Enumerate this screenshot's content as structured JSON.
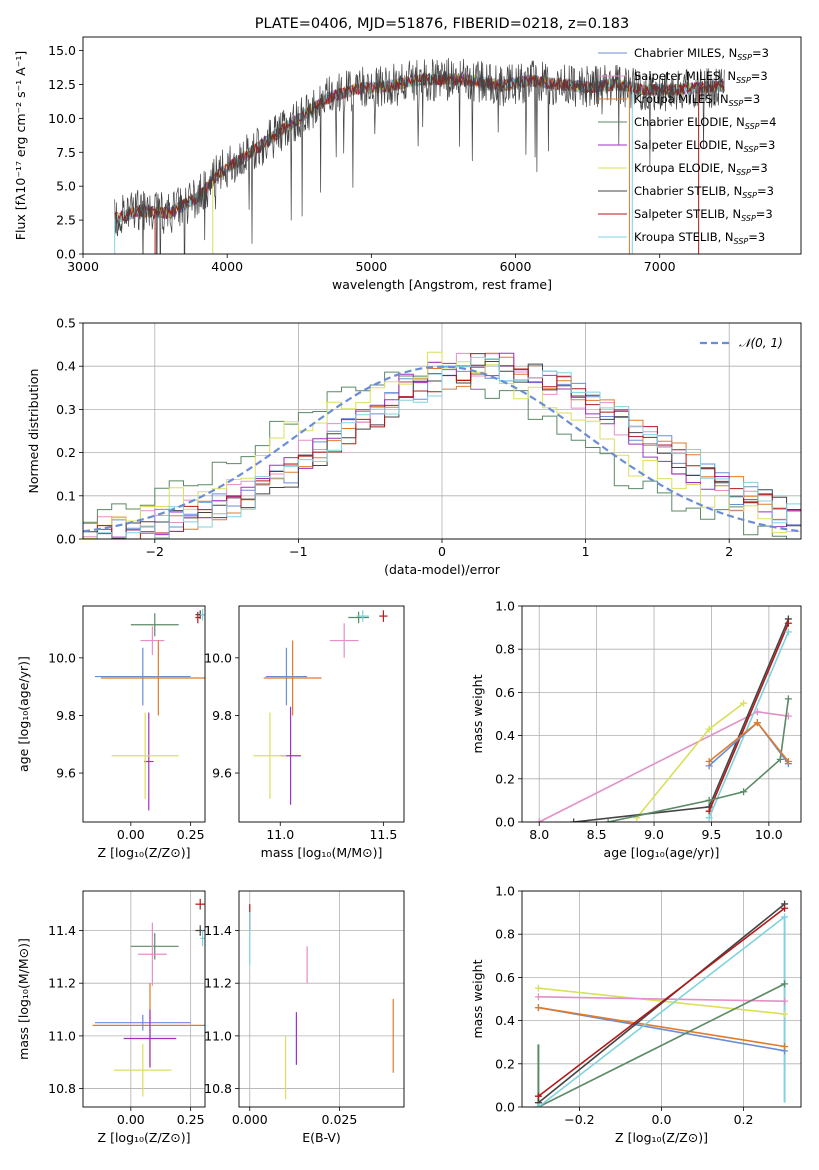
{
  "chart_data": [
    {
      "type": "line",
      "title": "PLATE=0406, MJD=51876, FIBERID=0218, z=0.183",
      "xlabel": "wavelength [Angstrom, rest frame]",
      "ylabel": "Flux [fλ10⁻¹⁷ erg cm⁻² s⁻¹ A⁻¹]",
      "xlim": [
        3000,
        7980
      ],
      "ylim": [
        0,
        16
      ],
      "xticks": [
        "3000",
        "4000",
        "5000",
        "6000",
        "7000"
      ],
      "yticks": [
        "0.0",
        "2.5",
        "5.0",
        "7.5",
        "10.0",
        "12.5",
        "15.0"
      ],
      "legend": "right",
      "continuum_points": [
        [
          3220,
          2.6
        ],
        [
          3400,
          3.2
        ],
        [
          3600,
          3.0
        ],
        [
          3800,
          4.2
        ],
        [
          3950,
          6.0
        ],
        [
          4100,
          7.0
        ],
        [
          4300,
          8.5
        ],
        [
          4500,
          10.0
        ],
        [
          4700,
          11.5
        ],
        [
          4900,
          12.2
        ],
        [
          5100,
          12.3
        ],
        [
          5300,
          12.8
        ],
        [
          5500,
          12.9
        ],
        [
          5700,
          12.8
        ],
        [
          5900,
          12.4
        ],
        [
          6100,
          12.8
        ],
        [
          6300,
          12.5
        ],
        [
          6500,
          12.3
        ],
        [
          6700,
          12.5
        ],
        [
          6900,
          12.1
        ],
        [
          7100,
          12.1
        ],
        [
          7300,
          12.3
        ],
        [
          7450,
          12.4
        ]
      ],
      "series": [
        {
          "name": "Chabrier MILES, N",
          "sub": "SSP",
          "tail": "=3",
          "color": "#6b8dd6"
        },
        {
          "name": "Salpeter MILES, N",
          "sub": "SSP",
          "tail": "=3",
          "color": "#e58fc4"
        },
        {
          "name": "Kroupa MILES, N",
          "sub": "SSP",
          "tail": "=3",
          "color": "#e07b2a"
        },
        {
          "name": "Chabrier ELODIE, N",
          "sub": "SSP",
          "tail": "=4",
          "color": "#5b8a66"
        },
        {
          "name": "Salpeter ELODIE, N",
          "sub": "SSP",
          "tail": "=3",
          "color": "#a032c0"
        },
        {
          "name": "Kroupa ELODIE, N",
          "sub": "SSP",
          "tail": "=3",
          "color": "#d9e05a"
        },
        {
          "name": "Chabrier STELIB, N",
          "sub": "SSP",
          "tail": "=3",
          "color": "#444444"
        },
        {
          "name": "Salpeter STELIB, N",
          "sub": "SSP",
          "tail": "=3",
          "color": "#b01a1a"
        },
        {
          "name": "Kroupa STELIB, N",
          "sub": "SSP",
          "tail": "=3",
          "color": "#7fd3df"
        }
      ]
    },
    {
      "type": "line",
      "xlabel": "(data-model)/error",
      "ylabel": "Normed distribution",
      "xlim": [
        -2.5,
        2.5
      ],
      "ylim": [
        0,
        0.5
      ],
      "xticks": [
        "−2",
        "−1",
        "0",
        "1",
        "2"
      ],
      "yticks": [
        "0.0",
        "0.1",
        "0.2",
        "0.3",
        "0.4",
        "0.5"
      ],
      "legend": "top-right",
      "gaussian_label": "𝒩(0, 1)",
      "gaussian_color": "#6b8dd6",
      "hist_offsets": [
        0.35,
        0.3,
        0.4,
        -0.2,
        0.3,
        0.0,
        0.4,
        0.4,
        0.4
      ]
    },
    {
      "type": "scatter",
      "xlabel": "Z [log₁₀(Z/Z⊙)]",
      "ylabel": "age  [log₁₀(age/yr)]",
      "xlim": [
        -0.2,
        0.31
      ],
      "ylim": [
        9.43,
        10.18
      ],
      "xticks": [
        "0.00",
        "0.25"
      ],
      "xtickvals": [
        0,
        0.25
      ],
      "yticks": [
        "9.6",
        "9.8",
        "10.0"
      ],
      "ytickvals": [
        9.6,
        9.8,
        10.0
      ],
      "points": [
        {
          "x": 0.1,
          "y": 10.115,
          "ex": 0.1,
          "ey": 0.04,
          "color": "#5b8a66"
        },
        {
          "x": 0.09,
          "y": 10.06,
          "ex": 0.05,
          "ey": 0.05,
          "color": "#e58fc4"
        },
        {
          "x": 0.29,
          "y": 10.15,
          "ex": 0.02,
          "ey": 0.015,
          "color": "#444444"
        },
        {
          "x": 0.28,
          "y": 10.14,
          "ex": 0.01,
          "ey": 0.02,
          "color": "#b01a1a"
        },
        {
          "x": 0.3,
          "y": 10.15,
          "ex": 0.01,
          "ey": 0.02,
          "color": "#7fd3df"
        },
        {
          "x": 0.05,
          "y": 9.935,
          "ex": 0.2,
          "ey": 0.1,
          "color": "#6b8dd6"
        },
        {
          "x": 0.115,
          "y": 9.93,
          "ex": 0.24,
          "ey": 0.13,
          "color": "#e07b2a"
        },
        {
          "x": 0.075,
          "y": 9.64,
          "ex": 0.02,
          "ey": 0.17,
          "color": "#a032c0"
        },
        {
          "x": 0.06,
          "y": 9.66,
          "ex": 0.14,
          "ey": 0.15,
          "color": "#d9e05a"
        }
      ]
    },
    {
      "type": "scatter",
      "xlabel": "mass [log₁₀(M/M⊙)]",
      "ylabel": "",
      "xlim": [
        10.8,
        11.6
      ],
      "ylim": [
        9.43,
        10.18
      ],
      "xticks": [
        "11.0",
        "11.5"
      ],
      "xtickvals": [
        11.0,
        11.5
      ],
      "yticks": [
        "9.6",
        "9.8",
        "10.0"
      ],
      "ytickvals": [
        9.6,
        9.8,
        10.0
      ],
      "points": [
        {
          "x": 11.38,
          "y": 10.14,
          "ex": 0.05,
          "ey": 0.02,
          "color": "#5b8a66"
        },
        {
          "x": 11.4,
          "y": 10.145,
          "ex": 0.03,
          "ey": 0.02,
          "color": "#7fd3df"
        },
        {
          "x": 11.5,
          "y": 10.145,
          "ex": 0.02,
          "ey": 0.02,
          "color": "#b01a1a"
        },
        {
          "x": 11.31,
          "y": 10.06,
          "ex": 0.07,
          "ey": 0.06,
          "color": "#e58fc4"
        },
        {
          "x": 11.03,
          "y": 9.935,
          "ex": 0.1,
          "ey": 0.1,
          "color": "#6b8dd6"
        },
        {
          "x": 11.06,
          "y": 9.93,
          "ex": 0.14,
          "ey": 0.13,
          "color": "#e07b2a"
        },
        {
          "x": 11.05,
          "y": 9.66,
          "ex": 0.05,
          "ey": 0.17,
          "color": "#a032c0"
        },
        {
          "x": 10.95,
          "y": 9.66,
          "ex": 0.08,
          "ey": 0.15,
          "color": "#d9e05a"
        }
      ]
    },
    {
      "type": "line",
      "xlabel": "age  [log₁₀(age/yr)]",
      "ylabel": "mass weight",
      "xlim": [
        7.85,
        10.28
      ],
      "ylim": [
        0,
        1
      ],
      "xticks": [
        "8.0",
        "8.5",
        "9.0",
        "9.5",
        "10.0"
      ],
      "xtickvals": [
        8.0,
        8.5,
        9.0,
        9.5,
        10.0
      ],
      "yticks": [
        "0.0",
        "0.2",
        "0.4",
        "0.6",
        "0.8",
        "1.0"
      ],
      "ytickvals": [
        0,
        0.2,
        0.4,
        0.6,
        0.8,
        1.0
      ],
      "series": [
        {
          "color": "#e58fc4",
          "points": [
            [
              8.0,
              0.0
            ],
            [
              9.9,
              0.51
            ],
            [
              10.17,
              0.49
            ]
          ]
        },
        {
          "color": "#d9e05a",
          "points": [
            [
              8.85,
              0.02
            ],
            [
              9.48,
              0.43
            ],
            [
              9.78,
              0.55
            ]
          ]
        },
        {
          "color": "#444444",
          "points": [
            [
              8.3,
              0.0
            ],
            [
              9.48,
              0.07
            ],
            [
              10.17,
              0.94
            ]
          ]
        },
        {
          "color": "#b01a1a",
          "points": [
            [
              9.48,
              0.05
            ],
            [
              10.17,
              0.92
            ]
          ]
        },
        {
          "color": "#7fd3df",
          "points": [
            [
              9.48,
              0.02
            ],
            [
              10.17,
              0.88
            ]
          ]
        },
        {
          "color": "#5b8a66",
          "points": [
            [
              8.6,
              0.0
            ],
            [
              9.48,
              0.1
            ],
            [
              9.78,
              0.14
            ],
            [
              10.1,
              0.29
            ],
            [
              10.17,
              0.57
            ]
          ]
        },
        {
          "color": "#6b8dd6",
          "points": [
            [
              9.48,
              0.26
            ],
            [
              9.9,
              0.46
            ],
            [
              10.17,
              0.27
            ]
          ]
        },
        {
          "color": "#e07b2a",
          "points": [
            [
              9.48,
              0.28
            ],
            [
              9.9,
              0.46
            ],
            [
              10.17,
              0.28
            ]
          ]
        }
      ]
    },
    {
      "type": "scatter",
      "xlabel": "Z [log₁₀(Z/Z⊙)]",
      "ylabel": "mass [log₁₀(M/M⊙)]",
      "xlim": [
        -0.2,
        0.31
      ],
      "ylim": [
        10.73,
        11.55
      ],
      "xticks": [
        "0.00",
        "0.25"
      ],
      "xtickvals": [
        0,
        0.25
      ],
      "yticks": [
        "10.8",
        "11.0",
        "11.2",
        "11.4"
      ],
      "ytickvals": [
        10.8,
        11.0,
        11.2,
        11.4
      ],
      "points": [
        {
          "x": 0.29,
          "y": 11.5,
          "ex": 0.02,
          "ey": 0.02,
          "color": "#b01a1a"
        },
        {
          "x": 0.29,
          "y": 11.4,
          "ex": 0.02,
          "ey": 0.02,
          "color": "#444444"
        },
        {
          "x": 0.3,
          "y": 11.37,
          "ex": 0.01,
          "ey": 0.03,
          "color": "#7fd3df"
        },
        {
          "x": 0.1,
          "y": 11.34,
          "ex": 0.1,
          "ey": 0.05,
          "color": "#5b8a66"
        },
        {
          "x": 0.09,
          "y": 11.31,
          "ex": 0.06,
          "ey": 0.12,
          "color": "#e58fc4"
        },
        {
          "x": 0.05,
          "y": 11.05,
          "ex": 0.2,
          "ey": 0.03,
          "color": "#6b8dd6"
        },
        {
          "x": 0.08,
          "y": 11.04,
          "ex": 0.24,
          "ey": 0.16,
          "color": "#e07b2a"
        },
        {
          "x": 0.08,
          "y": 10.99,
          "ex": 0.11,
          "ey": 0.11,
          "color": "#a032c0"
        },
        {
          "x": 0.05,
          "y": 10.87,
          "ex": 0.12,
          "ey": 0.1,
          "color": "#d9e05a"
        }
      ]
    },
    {
      "type": "scatter",
      "xlabel": "E(B-V)",
      "ylabel": "",
      "xlim": [
        -0.003,
        0.043
      ],
      "ylim": [
        10.73,
        11.55
      ],
      "xticks": [
        "0.000",
        "0.025"
      ],
      "xtickvals": [
        0,
        0.025
      ],
      "yticks": [
        "10.8",
        "11.0",
        "11.2",
        "11.4"
      ],
      "ytickvals": [
        10.8,
        11.0,
        11.2,
        11.4
      ],
      "points": [
        {
          "x": 0.0,
          "y": 11.45,
          "ex": 0.0,
          "ey": 0.05,
          "color": "#b01a1a"
        },
        {
          "x": 0.0,
          "y": 11.37,
          "ex": 0.0,
          "ey": 0.1,
          "color": "#7fd3df"
        },
        {
          "x": 0.016,
          "y": 11.27,
          "ex": 0.0,
          "ey": 0.07,
          "color": "#e58fc4"
        },
        {
          "x": 0.013,
          "y": 10.99,
          "ex": 0.0,
          "ey": 0.1,
          "color": "#a032c0"
        },
        {
          "x": 0.01,
          "y": 10.88,
          "ex": 0.0,
          "ey": 0.12,
          "color": "#d9e05a"
        },
        {
          "x": 0.04,
          "y": 11.0,
          "ex": 0.0,
          "ey": 0.14,
          "color": "#e07b2a"
        }
      ]
    },
    {
      "type": "line",
      "xlabel": "Z [log₁₀(Z/Z⊙)]",
      "ylabel": "mass weight",
      "xlim": [
        -0.34,
        0.34
      ],
      "ylim": [
        0,
        1
      ],
      "xticks": [
        "−0.2",
        "0.0",
        "0.2"
      ],
      "xtickvals": [
        -0.2,
        0.0,
        0.2
      ],
      "yticks": [
        "0.0",
        "0.2",
        "0.4",
        "0.6",
        "0.8",
        "1.0"
      ],
      "ytickvals": [
        0,
        0.2,
        0.4,
        0.6,
        0.8,
        1.0
      ],
      "series": [
        {
          "color": "#d9e05a",
          "points": [
            [
              -0.3,
              0.55
            ],
            [
              0.3,
              0.43
            ]
          ]
        },
        {
          "color": "#e58fc4",
          "points": [
            [
              -0.3,
              0.51
            ],
            [
              0.3,
              0.49
            ]
          ]
        },
        {
          "color": "#6b8dd6",
          "points": [
            [
              -0.3,
              0.46
            ],
            [
              0.3,
              0.26
            ]
          ]
        },
        {
          "color": "#e07b2a",
          "points": [
            [
              -0.3,
              0.46
            ],
            [
              0.3,
              0.28
            ]
          ]
        },
        {
          "color": "#5b8a66",
          "points": [
            [
              -0.3,
              0.0
            ],
            [
              0.3,
              0.57
            ]
          ]
        },
        {
          "color": "#444444",
          "points": [
            [
              -0.3,
              0.02
            ],
            [
              0.3,
              0.94
            ]
          ]
        },
        {
          "color": "#b01a1a",
          "points": [
            [
              -0.3,
              0.05
            ],
            [
              0.3,
              0.92
            ]
          ]
        },
        {
          "color": "#7fd3df",
          "points": [
            [
              -0.3,
              0.0
            ],
            [
              0.3,
              0.88
            ]
          ]
        }
      ],
      "vertical_bars": [
        {
          "x": -0.3,
          "y0": 0.0,
          "y1": 0.29,
          "color": "#5b8a66"
        },
        {
          "x": 0.3,
          "y0": 0.02,
          "y1": 0.88,
          "color": "#7fd3df"
        }
      ]
    }
  ]
}
